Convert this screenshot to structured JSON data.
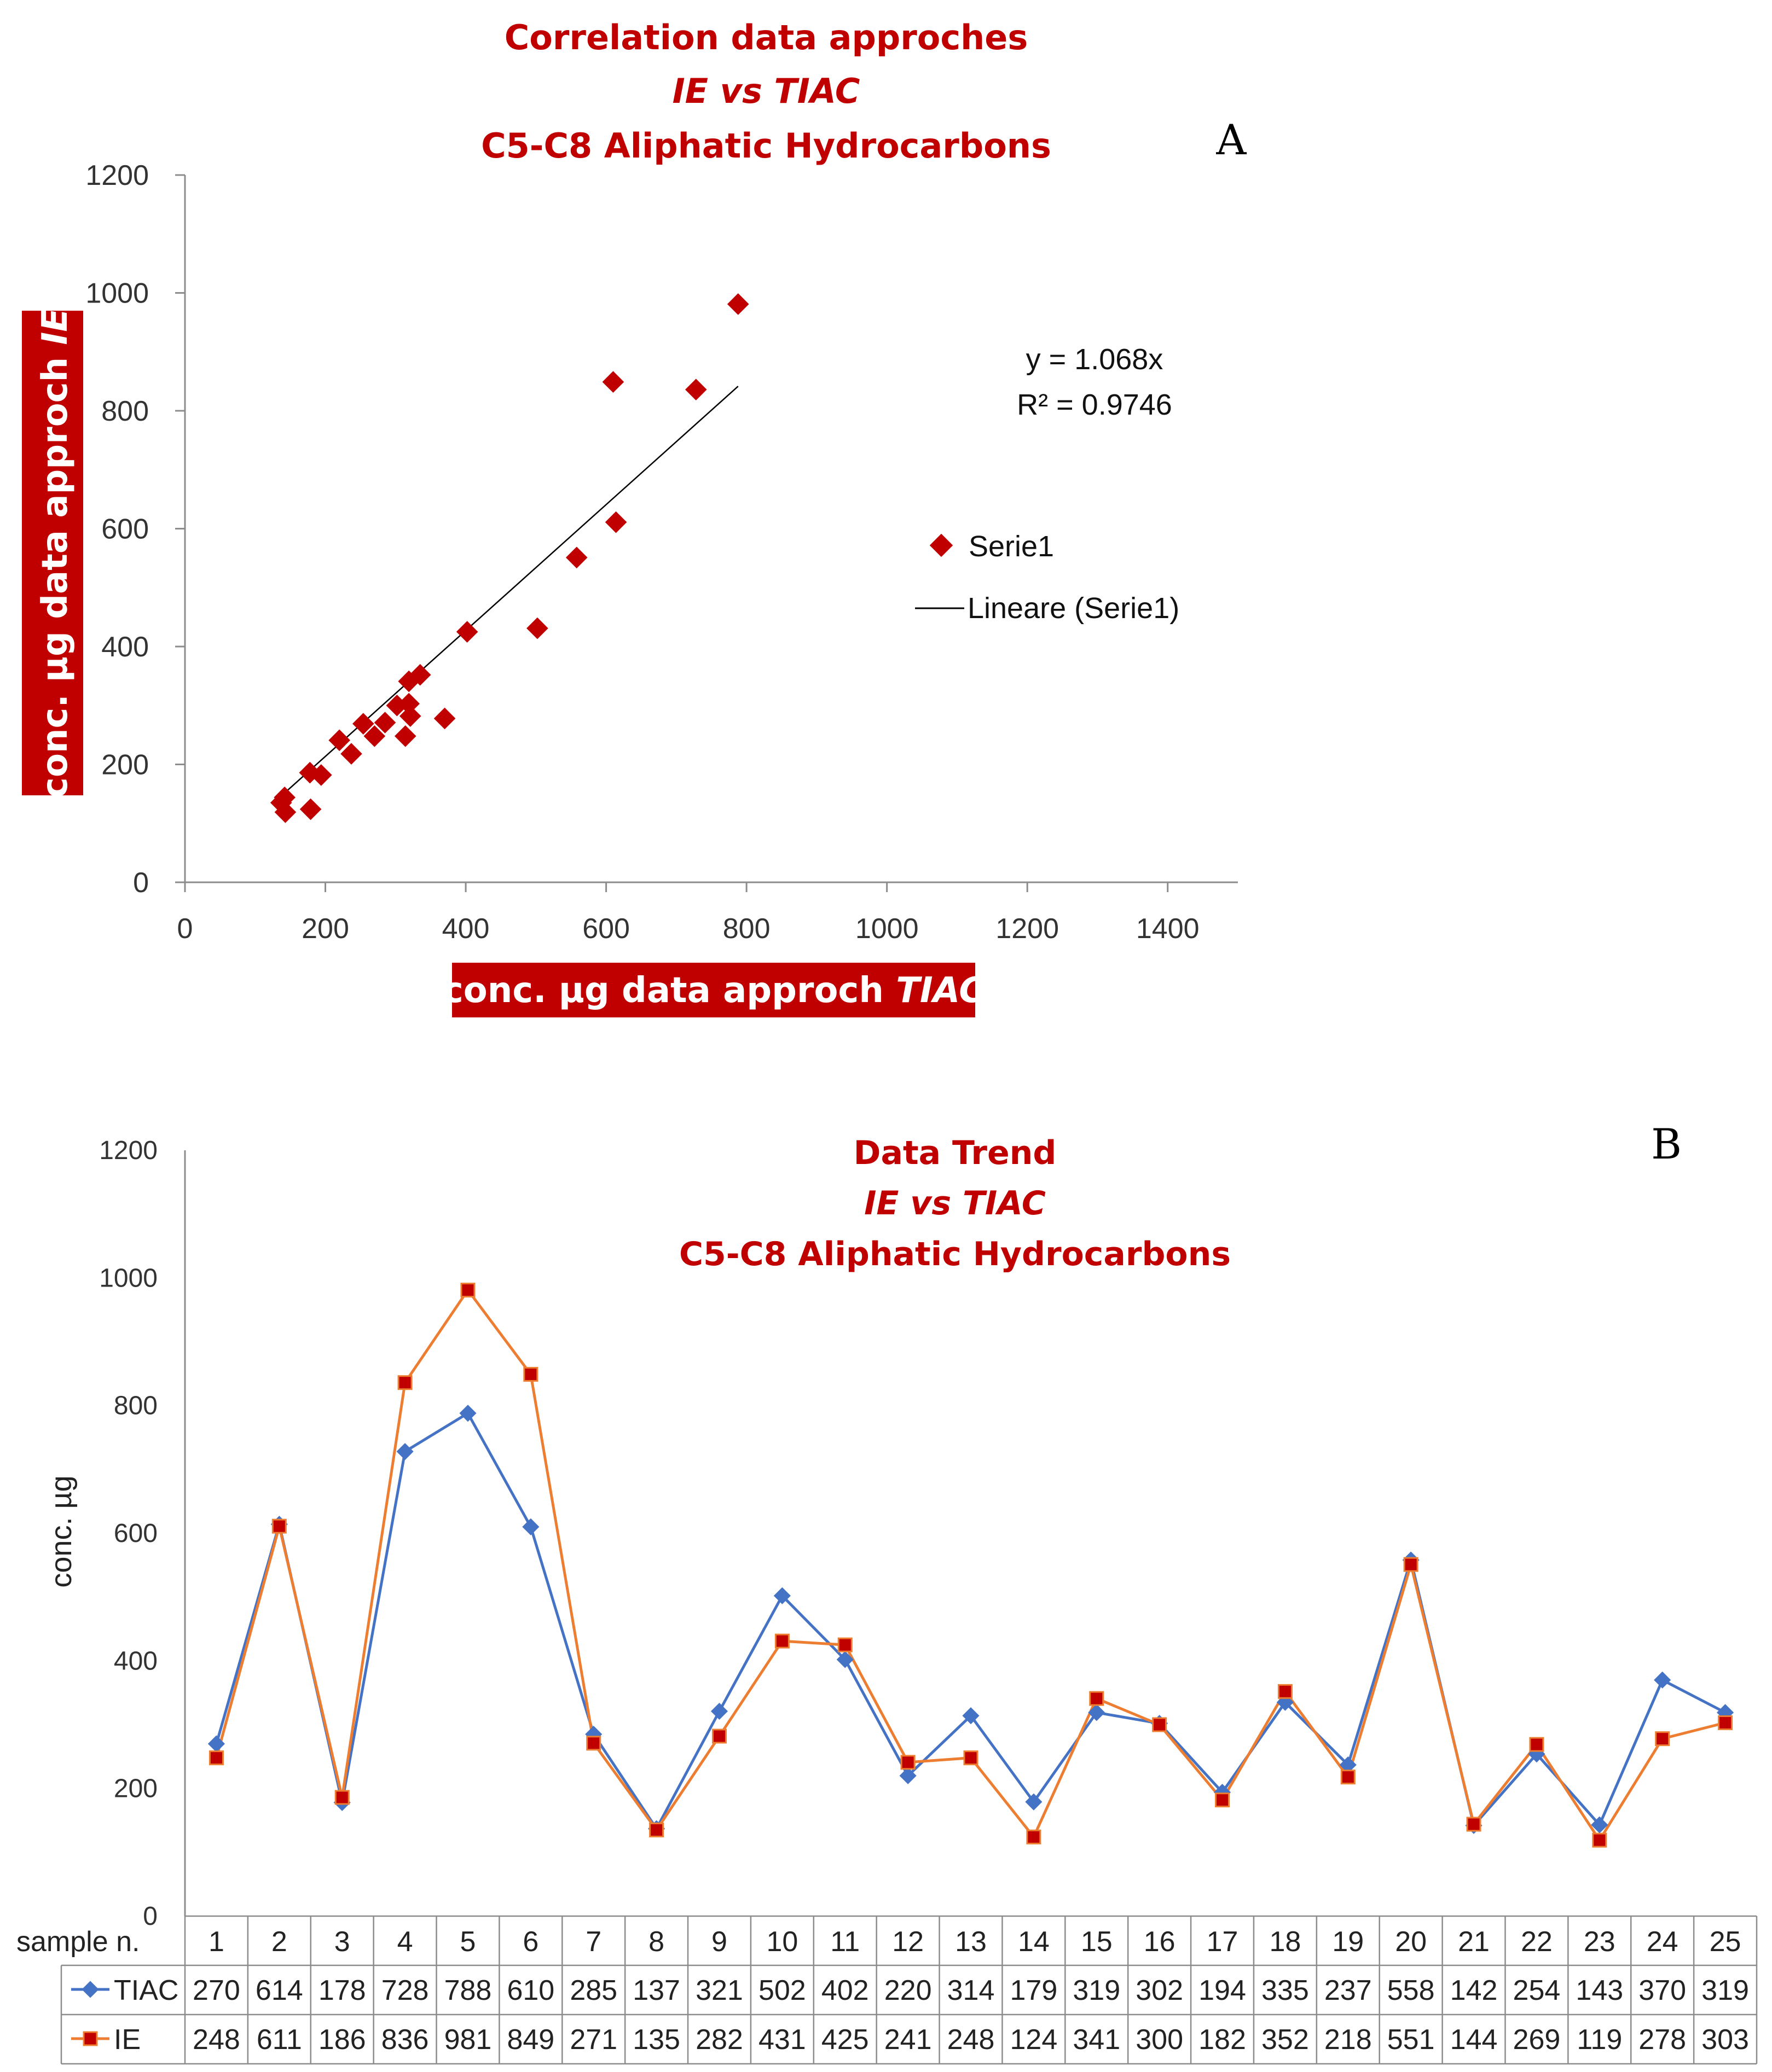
{
  "colors": {
    "title": "#c00000",
    "marker": "#c00000",
    "trend_line": "#000000",
    "tiac": "#4472c4",
    "ie": "#ed7d31",
    "ie_marker": "#c00000",
    "axis_label_bg": "#c00000",
    "axis_label_text": "#ffffff"
  },
  "chart_data": [
    {
      "type": "scatter",
      "panel_label": "A",
      "title_lines": [
        "Correlation data approches",
        "IE vs TIAC",
        "C5-C8 Aliphatic Hydrocarbons"
      ],
      "xlabel_prefix": "conc. µg data approch ",
      "xlabel_emph": "TIAC",
      "ylabel_prefix": "conc. µg data approch ",
      "ylabel_emph": "IE",
      "xlim": [
        0,
        1500
      ],
      "ylim": [
        0,
        1200
      ],
      "xticks": [
        0,
        200,
        400,
        600,
        800,
        1000,
        1200,
        1400
      ],
      "yticks": [
        0,
        200,
        400,
        600,
        800,
        1000,
        1200
      ],
      "series_name": "Serie1",
      "trend_name": "Lineare (Serie1)",
      "trend_slope": 1.068,
      "trend_x_range": [
        137,
        788
      ],
      "equation": "y = 1.068x",
      "r_squared": "R² = 0.9746",
      "x": [
        270,
        614,
        178,
        728,
        788,
        610,
        285,
        137,
        321,
        502,
        402,
        220,
        314,
        179,
        319,
        302,
        194,
        335,
        237,
        558,
        142,
        254,
        143,
        370,
        319
      ],
      "y": [
        248,
        611,
        186,
        836,
        981,
        849,
        271,
        135,
        282,
        431,
        425,
        241,
        248,
        124,
        341,
        300,
        182,
        352,
        218,
        551,
        144,
        269,
        119,
        278,
        303
      ]
    },
    {
      "type": "line",
      "panel_label": "B",
      "title_lines": [
        "Data Trend",
        "IE vs TIAC",
        "C5-C8 Aliphatic Hydrocarbons"
      ],
      "ylabel": "conc.  µg",
      "ylim": [
        0,
        1200
      ],
      "yticks": [
        0,
        200,
        400,
        600,
        800,
        1000,
        1200
      ],
      "table_header": "sample n.",
      "categories": [
        "1",
        "2",
        "3",
        "4",
        "5",
        "6",
        "7",
        "8",
        "9",
        "10",
        "11",
        "12",
        "13",
        "14",
        "15",
        "16",
        "17",
        "18",
        "19",
        "20",
        "21",
        "22",
        "23",
        "24",
        "25"
      ],
      "series": [
        {
          "name": "TIAC",
          "values": [
            270,
            614,
            178,
            728,
            788,
            610,
            285,
            137,
            321,
            502,
            402,
            220,
            314,
            179,
            319,
            302,
            194,
            335,
            237,
            558,
            142,
            254,
            143,
            370,
            319
          ]
        },
        {
          "name": "IE",
          "values": [
            248,
            611,
            186,
            836,
            981,
            849,
            271,
            135,
            282,
            431,
            425,
            241,
            248,
            124,
            341,
            300,
            182,
            352,
            218,
            551,
            144,
            269,
            119,
            278,
            303
          ]
        }
      ]
    }
  ]
}
